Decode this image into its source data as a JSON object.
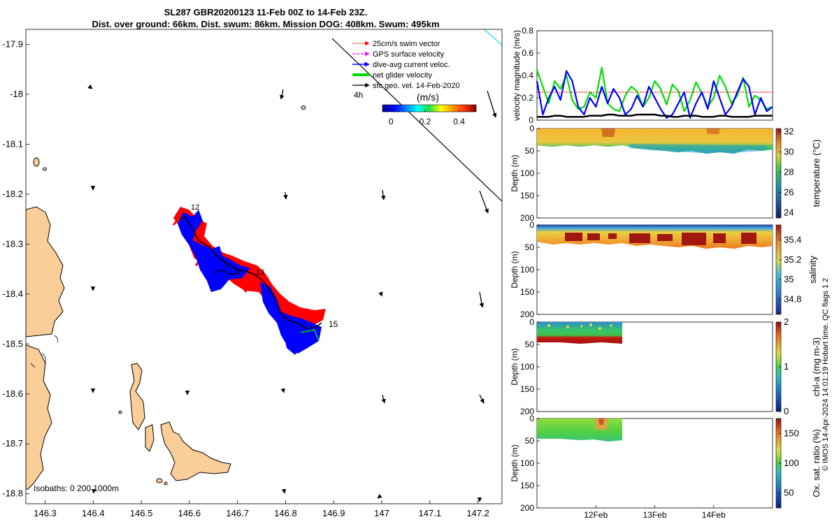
{
  "header": {
    "line1": "SL287 GBR20200123 11-Feb 00Z to 14-Feb 23Z.",
    "line2": "Dist. over ground: 66km. Dist. swum: 86km. Mission DOG: 408km. Swum: 495km"
  },
  "map": {
    "lon_ticks": [
      "146.3",
      "146.4",
      "146.5",
      "146.6",
      "146.7",
      "146.8",
      "146.9",
      "147",
      "147.1",
      "147.2"
    ],
    "lat_ticks": [
      "-17.9",
      "-18",
      "-18.1",
      "-18.2",
      "-18.3",
      "-18.4",
      "-18.5",
      "-18.6",
      "-18.7",
      "-18.8"
    ],
    "xlim": [
      146.26,
      147.25
    ],
    "ylim": [
      -18.82,
      -17.87
    ],
    "legend": [
      {
        "label": "25cm/s swim vector",
        "color": "#ff0000",
        "style": "dotted-arrow"
      },
      {
        "label": "GPS surface velocity",
        "color": "#ff00ff",
        "style": "dashed-arrow"
      },
      {
        "label": "dive-avg current veloc.",
        "color": "#0000ff",
        "style": "arrow"
      },
      {
        "label": "net glider velocity",
        "color": "#00dd00",
        "style": "thick"
      },
      {
        "label": "sfc geo. vel. 14-Feb-2020",
        "color": "#000000",
        "style": "arrow"
      }
    ],
    "scale_label": "4h",
    "colorbar": {
      "label": "(m/s)",
      "ticks": [
        "0",
        "0.2",
        "0.4"
      ],
      "range": [
        -0.05,
        0.5
      ]
    },
    "day_labels": [
      "12",
      "13",
      "15"
    ],
    "isobaths_label": "Isobaths: 0  200  1000m"
  },
  "velocity_panel": {
    "ylabel": "velocity magnitude (m/s)",
    "yticks": [
      "0",
      "0.2",
      "0.4",
      "0.6",
      "0.8"
    ],
    "ylim": [
      0,
      0.8
    ],
    "threshold": 0.25
  },
  "sections": [
    {
      "label": "temperature (°C)",
      "cticks": [
        "24",
        "26",
        "28",
        "30",
        "32"
      ],
      "crange": [
        23.5,
        32.3
      ]
    },
    {
      "label": "salinity",
      "cticks": [
        "34.8",
        "35",
        "35.2",
        "35.4"
      ],
      "crange": [
        34.65,
        35.55
      ]
    },
    {
      "label": "chl-a (mg m-3)",
      "cticks": [
        "0",
        "1",
        "2"
      ],
      "crange": [
        0,
        2
      ]
    },
    {
      "label": "Ox. sat. ratio (%)",
      "cticks": [
        "50",
        "100",
        "150"
      ],
      "crange": [
        25,
        175
      ]
    }
  ],
  "depth_axis": {
    "label": "Depth (m)",
    "ticks": [
      "0",
      "50",
      "100",
      "150",
      "200"
    ]
  },
  "time_axis": {
    "ticks": [
      "12Feb",
      "13Feb",
      "14Feb"
    ]
  },
  "credit": "© IMOS 14-Apr-2024 14:01:19 Hobart time. QC flags 1  2",
  "chart_data": [
    {
      "type": "line",
      "title": "velocity magnitude",
      "x_days": [
        0,
        0.1,
        0.2,
        0.3,
        0.4,
        0.5,
        0.6,
        0.7,
        0.8,
        0.9,
        1.0,
        1.1,
        1.2,
        1.3,
        1.4,
        1.5,
        1.6,
        1.7,
        1.8,
        1.9,
        2.0,
        2.1,
        2.2,
        2.3,
        2.4,
        2.5,
        2.6,
        2.7,
        2.8,
        2.9,
        3.0,
        3.1,
        3.2,
        3.3,
        3.4,
        3.5,
        3.6,
        3.7,
        3.8,
        3.9,
        4.0
      ],
      "series": [
        {
          "name": "net glider velocity",
          "color": "#00dd00",
          "values": [
            0.45,
            0.3,
            0.15,
            0.35,
            0.28,
            0.4,
            0.18,
            0.1,
            0.12,
            0.25,
            0.2,
            0.47,
            0.15,
            0.1,
            0.08,
            0.22,
            0.3,
            0.26,
            0.12,
            0.2,
            0.35,
            0.28,
            0.14,
            0.32,
            0.26,
            0.08,
            0.18,
            0.34,
            0.24,
            0.12,
            0.2,
            0.4,
            0.3,
            0.15,
            0.22,
            0.38,
            0.12,
            0.22,
            0.18,
            0.1,
            0.12
          ]
        },
        {
          "name": "dive-avg current veloc.",
          "color": "#0000ff",
          "values": [
            0.35,
            0.05,
            0.2,
            0.3,
            0.18,
            0.44,
            0.35,
            0.12,
            0.05,
            0.2,
            0.12,
            0.3,
            0.15,
            0.28,
            0.2,
            0.05,
            0.1,
            0.22,
            0.12,
            0.3,
            0.2,
            0.1,
            0.02,
            0.05,
            0.15,
            0.25,
            0.02,
            0.15,
            0.25,
            0.1,
            0.35,
            0.2,
            0.05,
            0.12,
            0.25,
            0.37,
            0.3,
            0.05,
            0.2,
            0.08,
            0.12
          ]
        },
        {
          "name": "sfc geo. vel.",
          "color": "#000000",
          "values": [
            0.03,
            0.03,
            0.03,
            0.04,
            0.04,
            0.03,
            0.03,
            0.03,
            0.03,
            0.04,
            0.04,
            0.04,
            0.05,
            0.05,
            0.04,
            0.04,
            0.04,
            0.05,
            0.05,
            0.05,
            0.05,
            0.04,
            0.04,
            0.03,
            0.03,
            0.04,
            0.04,
            0.04,
            0.03,
            0.03,
            0.03,
            0.04,
            0.04,
            0.03,
            0.03,
            0.03,
            0.03,
            0.04,
            0.04,
            0.04,
            0.04
          ]
        },
        {
          "name": "25cm/s swim vector",
          "color": "#ff0000",
          "values": [
            0.25,
            0.25
          ]
        }
      ],
      "xlabel": "",
      "ylabel": "velocity magnitude (m/s)",
      "ylim": [
        0,
        0.8
      ]
    },
    {
      "type": "heatmap",
      "title": "temperature section",
      "x_days": [
        0,
        0.5,
        1.0,
        1.5,
        2.0,
        2.5,
        3.0,
        3.5,
        4.0
      ],
      "mixed_layer_depth_m": [
        33,
        32,
        36,
        30,
        40,
        38,
        42,
        44,
        36
      ],
      "surface_value": 30.5,
      "bottom_value": 25.5,
      "ylabel": "Depth (m)",
      "ylim": [
        200,
        0
      ]
    },
    {
      "type": "heatmap",
      "title": "salinity section",
      "x_days": [
        0,
        0.5,
        1.0,
        1.5,
        2.0,
        2.5,
        3.0,
        3.5,
        4.0
      ],
      "mixed_layer_depth_m": [
        38,
        36,
        40,
        35,
        44,
        42,
        46,
        48,
        40
      ],
      "surface_value": 34.75,
      "bottom_value": 35.55,
      "ylabel": "Depth (m)",
      "ylim": [
        200,
        0
      ]
    },
    {
      "type": "heatmap",
      "title": "chl-a section",
      "x_days": [
        0,
        0.5,
        1.0,
        1.43
      ],
      "mixed_layer_depth_m": [
        30,
        28,
        30,
        28
      ],
      "surface_value": 0.7,
      "bottom_value": 2.0,
      "ylabel": "Depth (m)",
      "ylim": [
        200,
        0
      ]
    },
    {
      "type": "heatmap",
      "title": "oxygen saturation section",
      "x_days": [
        0,
        0.5,
        1.0,
        1.43
      ],
      "mixed_layer_depth_m": [
        40,
        40,
        42,
        45
      ],
      "surface_value": 112,
      "bottom_value": 100,
      "ylabel": "Depth (m)",
      "ylim": [
        200,
        0
      ]
    }
  ]
}
